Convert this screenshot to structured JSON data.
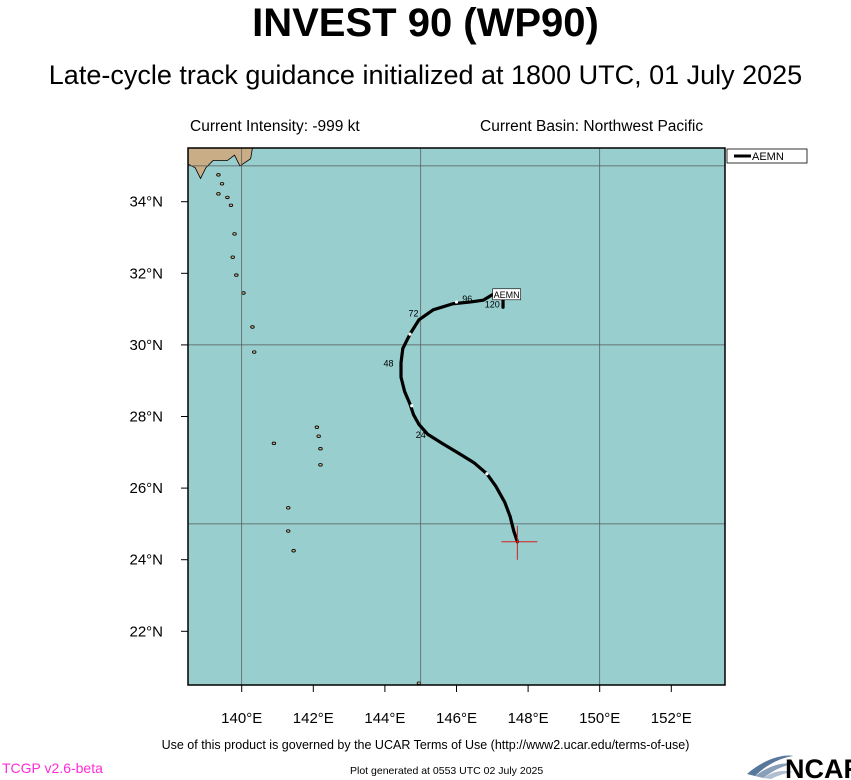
{
  "header": {
    "title": "INVEST 90 (WP90)",
    "subtitle": "Late-cycle track guidance initialized at 1800 UTC, 01 July 2025",
    "intensity": "Current Intensity: -999 kt",
    "basin": "Current Basin: Northwest Pacific"
  },
  "footer": {
    "terms": "Use of this product is governed by the UCAR Terms of Use (http://www2.ucar.edu/terms-of-use)",
    "version": "TCGP v2.6-beta",
    "generated": "Plot generated at 0553 UTC   02 July 2025",
    "logo_text": "NCAR"
  },
  "colors": {
    "ocean": "#98cece",
    "land": "#c8ad86",
    "track": "#000000",
    "marker": "#d42020",
    "version": "#ff2bd6"
  },
  "chart_data": {
    "type": "map",
    "projection": "lat-lon",
    "lon_range": [
      138.5,
      153.5
    ],
    "lat_range": [
      20.5,
      35.5
    ],
    "lon_ticks": [
      140,
      142,
      144,
      146,
      148,
      150,
      152
    ],
    "lon_tick_labels": [
      "140°E",
      "142°E",
      "144°E",
      "146°E",
      "148°E",
      "150°E",
      "152°E"
    ],
    "lat_ticks": [
      22,
      24,
      26,
      28,
      30,
      32,
      34
    ],
    "lat_tick_labels": [
      "22°N",
      "24°N",
      "26°N",
      "28°N",
      "30°N",
      "32°N",
      "34°N"
    ],
    "grid_lons": [
      140,
      145,
      150
    ],
    "grid_lats": [
      25,
      30,
      35
    ],
    "legend": {
      "entries": [
        "AEMN"
      ],
      "placement": "top-right"
    },
    "current_position": {
      "lon": 147.7,
      "lat": 24.5
    },
    "tracks": [
      {
        "name": "AEMN",
        "points": [
          [
            147.7,
            24.5
          ],
          [
            147.6,
            24.8
          ],
          [
            147.5,
            25.2
          ],
          [
            147.35,
            25.6
          ],
          [
            147.1,
            26.05
          ],
          [
            146.85,
            26.4
          ],
          [
            146.5,
            26.7
          ],
          [
            146.1,
            26.95
          ],
          [
            145.6,
            27.25
          ],
          [
            145.2,
            27.5
          ],
          [
            144.95,
            27.78
          ],
          [
            144.8,
            28.05
          ],
          [
            144.7,
            28.35
          ],
          [
            144.55,
            28.7
          ],
          [
            144.45,
            29.1
          ],
          [
            144.45,
            29.5
          ],
          [
            144.5,
            29.9
          ],
          [
            144.7,
            30.3
          ],
          [
            144.95,
            30.7
          ],
          [
            145.35,
            30.98
          ],
          [
            145.9,
            31.15
          ],
          [
            146.4,
            31.2
          ],
          [
            146.75,
            31.25
          ],
          [
            147.0,
            31.4
          ]
        ],
        "end_marker": [
          [
            147.3,
            31.05
          ],
          [
            147.3,
            31.3
          ]
        ],
        "tick_points": [
          [
            146.85,
            26.4
          ],
          [
            144.75,
            28.3
          ],
          [
            144.7,
            30.3
          ],
          [
            146.0,
            31.2
          ]
        ],
        "tau_labels": [
          {
            "text": "24",
            "lon": 145.0,
            "lat": 27.4
          },
          {
            "text": "48",
            "lon": 144.1,
            "lat": 29.4
          },
          {
            "text": "72",
            "lon": 144.8,
            "lat": 30.8
          },
          {
            "text": "96",
            "lon": 146.3,
            "lat": 31.2
          },
          {
            "text": "120",
            "lon": 147.0,
            "lat": 31.05
          }
        ],
        "end_label": {
          "text": "AEMN",
          "lon": 147.4,
          "lat": 31.4
        }
      }
    ],
    "islands": [
      [
        139.35,
        34.75
      ],
      [
        139.45,
        34.5
      ],
      [
        139.35,
        34.22
      ],
      [
        139.6,
        34.12
      ],
      [
        139.7,
        33.9
      ],
      [
        139.8,
        33.1
      ],
      [
        139.75,
        32.45
      ],
      [
        139.85,
        31.95
      ],
      [
        140.05,
        31.45
      ],
      [
        140.3,
        30.5
      ],
      [
        140.35,
        29.8
      ],
      [
        142.1,
        27.7
      ],
      [
        142.15,
        27.45
      ],
      [
        142.2,
        27.1
      ],
      [
        142.2,
        26.65
      ],
      [
        140.9,
        27.25
      ],
      [
        141.3,
        25.45
      ],
      [
        141.3,
        24.8
      ],
      [
        141.45,
        24.25
      ],
      [
        144.95,
        20.55
      ]
    ],
    "mainland": [
      [
        138.5,
        35.5
      ],
      [
        140.3,
        35.5
      ],
      [
        140.25,
        35.2
      ],
      [
        139.95,
        35.0
      ],
      [
        139.8,
        35.3
      ],
      [
        139.6,
        35.15
      ],
      [
        139.2,
        35.15
      ],
      [
        139.0,
        34.95
      ],
      [
        138.85,
        34.65
      ],
      [
        138.7,
        34.95
      ],
      [
        138.5,
        35.05
      ]
    ]
  }
}
